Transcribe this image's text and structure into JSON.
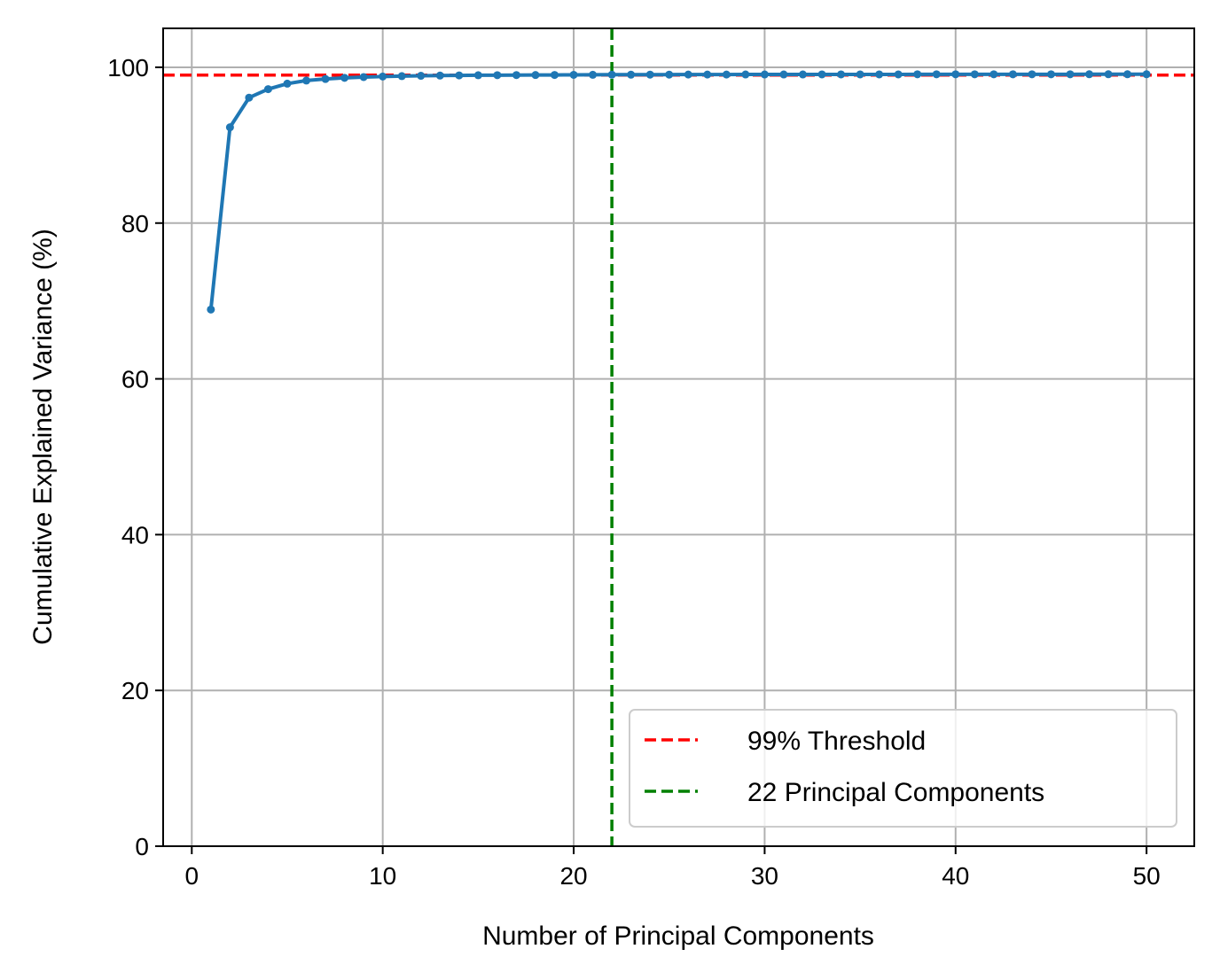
{
  "chart_data": {
    "type": "line",
    "title": "",
    "xlabel": "Number of Principal Components",
    "ylabel": "Cumulative Explained Variance (%)",
    "xlim": [
      -1.5,
      52.5
    ],
    "ylim": [
      0,
      105
    ],
    "xticks": [
      0,
      10,
      20,
      30,
      40,
      50
    ],
    "yticks": [
      0,
      20,
      40,
      60,
      80,
      100
    ],
    "grid": true,
    "legend_position": "lower right",
    "series": [
      {
        "name": "",
        "color": "#1f77b4",
        "x": [
          1,
          2,
          3,
          4,
          5,
          6,
          7,
          8,
          9,
          10,
          11,
          12,
          13,
          14,
          15,
          16,
          17,
          18,
          19,
          20,
          21,
          22,
          23,
          24,
          25,
          26,
          27,
          28,
          29,
          30,
          31,
          32,
          33,
          34,
          35,
          36,
          37,
          38,
          39,
          40,
          41,
          42,
          43,
          44,
          45,
          46,
          47,
          48,
          49,
          50
        ],
        "y": [
          68.9,
          92.3,
          96.1,
          97.2,
          97.9,
          98.3,
          98.5,
          98.65,
          98.75,
          98.82,
          98.87,
          98.91,
          98.94,
          98.96,
          98.98,
          98.99,
          99.0,
          99.01,
          99.02,
          99.03,
          99.04,
          99.05,
          99.05,
          99.06,
          99.06,
          99.07,
          99.07,
          99.07,
          99.08,
          99.08,
          99.08,
          99.08,
          99.09,
          99.09,
          99.09,
          99.09,
          99.09,
          99.1,
          99.1,
          99.1,
          99.1,
          99.1,
          99.1,
          99.1,
          99.1,
          99.1,
          99.11,
          99.11,
          99.11,
          99.11
        ]
      }
    ],
    "reference_lines": [
      {
        "orientation": "horizontal",
        "value": 99,
        "label": "99% Threshold",
        "color": "#ff0000",
        "style": "dashed"
      },
      {
        "orientation": "vertical",
        "value": 22,
        "label": "22 Principal Components",
        "color": "#008000",
        "style": "dashed"
      }
    ]
  }
}
